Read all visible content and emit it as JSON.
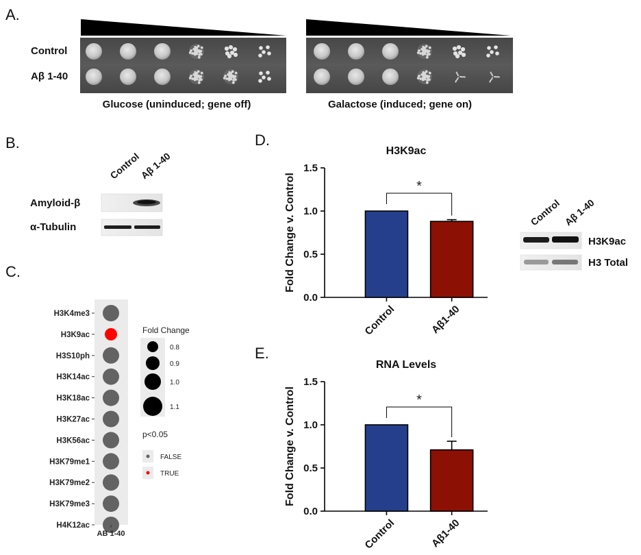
{
  "panels": {
    "a": {
      "letter": "A.",
      "row_labels": [
        "Control",
        "Aβ 1-40"
      ],
      "plates": [
        {
          "caption": "Glucose (uninduced; gene off)"
        },
        {
          "caption": "Galactose (induced; gene on)"
        }
      ]
    },
    "b": {
      "letter": "B.",
      "lane_labels": [
        "Control",
        "Aβ 1-40"
      ],
      "blot_labels": [
        "Amyloid-β",
        "α-Tubulin"
      ]
    },
    "c": {
      "letter": "C.",
      "x_label": "AB 1-40",
      "size_legend_title": "Fold Change",
      "size_legend_values": [
        "0.8",
        "0.9",
        "1.0",
        "1.1"
      ],
      "color_legend_title": "p<0.05",
      "color_legend_values": [
        "FALSE",
        "TRUE"
      ],
      "colors": {
        "false": "#636363",
        "true": "#ff0000",
        "panel_bg": "#ebebeb"
      }
    },
    "d": {
      "letter": "D.",
      "blot_lane_labels": [
        "Control",
        "Aβ 1-40"
      ],
      "blot_labels": [
        "H3K9ac",
        "H3 Total"
      ]
    },
    "e": {
      "letter": "E."
    }
  },
  "chart_data": [
    {
      "type": "scatter",
      "id": "panel-c-dot-plot",
      "categories": [
        "H3K4me3",
        "H3K9ac",
        "H3S10ph",
        "H3K14ac",
        "H3K18ac",
        "H3K27ac",
        "H3K56ac",
        "H3K79me1",
        "H3K79me2",
        "H3K79me3",
        "H4K12ac"
      ],
      "x": [
        "AB 1-40"
      ],
      "fold_change": [
        1.0,
        0.85,
        1.0,
        1.0,
        1.0,
        1.0,
        1.0,
        1.0,
        1.0,
        1.0,
        1.0
      ],
      "significant": [
        false,
        true,
        false,
        false,
        false,
        false,
        false,
        false,
        false,
        false,
        false
      ],
      "xlabel": "AB 1-40",
      "legend": "right"
    },
    {
      "type": "bar",
      "id": "panel-d",
      "title": "H3K9ac",
      "categories": [
        "Control",
        "Aβ1-40"
      ],
      "values": [
        1.0,
        0.88
      ],
      "errors": [
        0,
        0.02
      ],
      "colors": [
        "#263f8c",
        "#8c1004"
      ],
      "ylabel": "Fold Change v. Control",
      "ylim": [
        0,
        1.5
      ],
      "yticks": [
        "0.0",
        "0.5",
        "1.0",
        "1.5"
      ],
      "annotation": "*"
    },
    {
      "type": "bar",
      "id": "panel-e",
      "title": "RNA Levels",
      "categories": [
        "Control",
        "Aβ1-40"
      ],
      "values": [
        1.0,
        0.71
      ],
      "errors": [
        0,
        0.1
      ],
      "colors": [
        "#263f8c",
        "#8c1004"
      ],
      "ylabel": "Fold Change v. Control",
      "ylim": [
        0,
        1.5
      ],
      "yticks": [
        "0.0",
        "0.5",
        "1.0",
        "1.5"
      ],
      "annotation": "*"
    }
  ]
}
